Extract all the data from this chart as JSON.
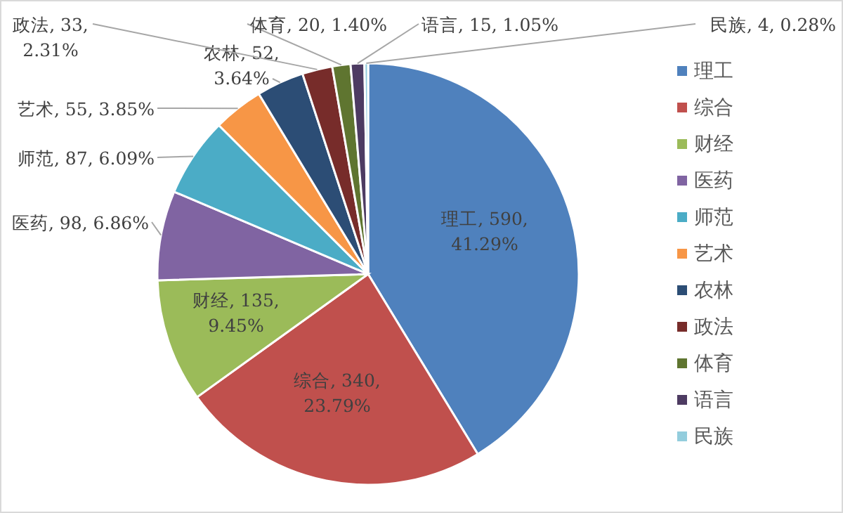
{
  "chart_data": {
    "type": "pie",
    "categories": [
      "理工",
      "综合",
      "财经",
      "医药",
      "师范",
      "艺术",
      "农林",
      "政法",
      "体育",
      "语言",
      "民族"
    ],
    "values": [
      590,
      340,
      135,
      98,
      87,
      55,
      52,
      33,
      20,
      15,
      4
    ],
    "colors": [
      "#4f81bd",
      "#c0504d",
      "#9bbb59",
      "#8064a2",
      "#4bacc6",
      "#f79646",
      "#2c4d75",
      "#772c2a",
      "#5f7530",
      "#4d3b62",
      "#93cddd"
    ],
    "value_labels": [
      "理工, 590, 41.29%",
      "综合, 340, 23.79%",
      "财经, 135, 9.45%",
      "医药, 98, 6.86%",
      "师范, 87, 6.09%",
      "艺术, 55, 3.85%",
      "农林, 52, 3.64%",
      "政法, 33, 2.31%",
      "体育, 20, 1.40%",
      "语言, 15, 1.05%",
      "民族, 4, 0.28%"
    ],
    "legend": "right"
  }
}
